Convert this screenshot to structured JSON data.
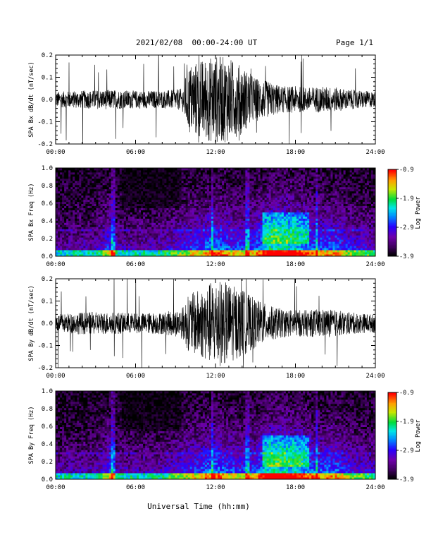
{
  "header": {
    "title": "2021/02/08  00:00-24:00 UT",
    "page": "Page 1/1"
  },
  "xlabel": "Universal Time (hh:mm)",
  "chart_data": [
    {
      "type": "line",
      "id": "bx_wave",
      "ylabel": "SPA Bx dB/dt (nT/sec)",
      "xlim": [
        0,
        24
      ],
      "ylim": [
        -0.2,
        0.2
      ],
      "xticks": [
        "00:00",
        "06:00",
        "12:00",
        "18:00",
        "24:00"
      ],
      "yticks": [
        "-0.2",
        "-0.1",
        "0.0",
        "0.1",
        "0.2"
      ],
      "envelope": {
        "hours": [
          0,
          2,
          4,
          6,
          8,
          9,
          9.5,
          10,
          11,
          12,
          13,
          14,
          15,
          16,
          17,
          18,
          19,
          20,
          21,
          22,
          23,
          24
        ],
        "amplitude": [
          0.035,
          0.04,
          0.045,
          0.04,
          0.04,
          0.045,
          0.05,
          0.16,
          0.18,
          0.2,
          0.19,
          0.15,
          0.1,
          0.08,
          0.06,
          0.06,
          0.055,
          0.06,
          0.055,
          0.045,
          0.04,
          0.035
        ]
      },
      "color": "#000000"
    },
    {
      "type": "heatmap",
      "id": "bx_spec",
      "ylabel": "SPA Bx Freq (Hz)",
      "xlim": [
        0,
        24
      ],
      "ylim": [
        0,
        1.0
      ],
      "xticks": [
        "00:00",
        "06:00",
        "12:00",
        "18:00",
        "24:00"
      ],
      "yticks": [
        "0.0",
        "0.2",
        "0.4",
        "0.6",
        "0.8",
        "1.0"
      ],
      "colorbar": {
        "label": "Log Power",
        "ticks": [
          "-0.9",
          "-1.9",
          "-2.9",
          "-3.9"
        ],
        "range": [
          -3.9,
          -0.9
        ]
      }
    },
    {
      "type": "line",
      "id": "by_wave",
      "ylabel": "SPA By dB/dt (nT/sec)",
      "xlim": [
        0,
        24
      ],
      "ylim": [
        -0.2,
        0.2
      ],
      "xticks": [
        "00:00",
        "06:00",
        "12:00",
        "18:00",
        "24:00"
      ],
      "yticks": [
        "-0.2",
        "-0.1",
        "0.0",
        "0.1",
        "0.2"
      ],
      "envelope": {
        "hours": [
          0,
          2,
          4,
          6,
          8,
          9,
          9.5,
          10,
          11,
          12,
          13,
          14,
          15,
          16,
          17,
          18,
          19,
          20,
          21,
          22,
          23,
          24
        ],
        "amplitude": [
          0.04,
          0.05,
          0.05,
          0.045,
          0.05,
          0.06,
          0.07,
          0.13,
          0.16,
          0.2,
          0.18,
          0.15,
          0.11,
          0.08,
          0.065,
          0.06,
          0.06,
          0.065,
          0.06,
          0.05,
          0.045,
          0.04
        ]
      },
      "color": "#000000"
    },
    {
      "type": "heatmap",
      "id": "by_spec",
      "ylabel": "SPA By Freq (Hz)",
      "xlim": [
        0,
        24
      ],
      "ylim": [
        0,
        1.0
      ],
      "xticks": [
        "00:00",
        "06:00",
        "12:00",
        "18:00",
        "24:00"
      ],
      "yticks": [
        "0.0",
        "0.2",
        "0.4",
        "0.6",
        "0.8",
        "1.0"
      ],
      "colorbar": {
        "label": "Log Power",
        "ticks": [
          "-0.9",
          "-1.9",
          "-2.9",
          "-3.9"
        ],
        "range": [
          -3.9,
          -0.9
        ]
      }
    }
  ]
}
